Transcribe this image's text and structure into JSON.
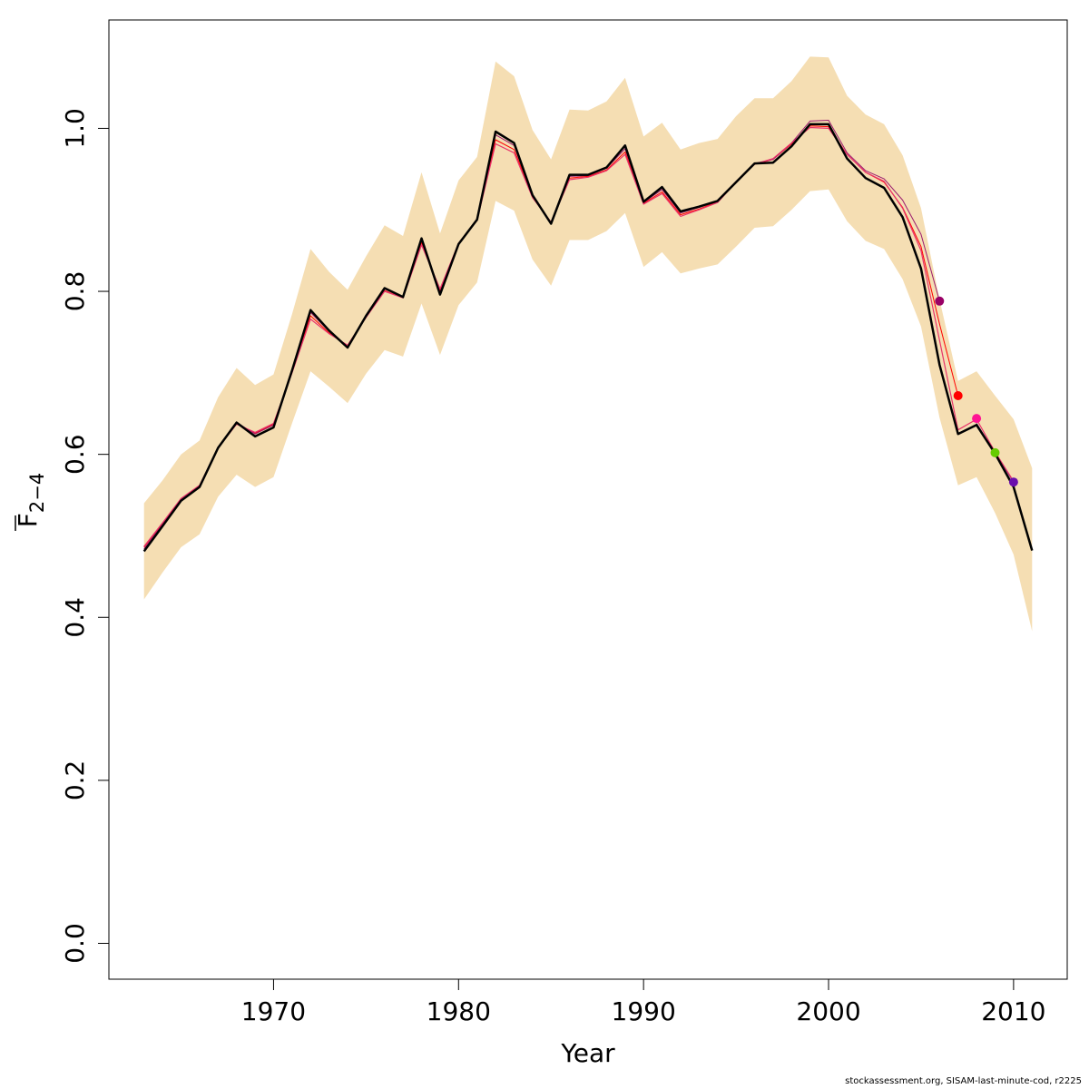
{
  "chart_data": {
    "type": "line",
    "xlabel": "Year",
    "ylabel": {
      "main": "F",
      "subscript": "2−4",
      "overline": true
    },
    "xlim": [
      1961.1,
      2012.9
    ],
    "ylim": [
      -0.044,
      1.133
    ],
    "x_ticks": [
      1970,
      1980,
      1990,
      2000,
      2010
    ],
    "y_ticks": [
      0.0,
      0.2,
      0.4,
      0.6,
      0.8,
      1.0
    ],
    "y_tick_labels": [
      "0.0",
      "0.2",
      "0.4",
      "0.6",
      "0.8",
      "1.0"
    ],
    "grid": false,
    "band_color": "#F5DEB3",
    "band": {
      "x": [
        1963,
        1964,
        1965,
        1966,
        1967,
        1968,
        1969,
        1970,
        1971,
        1972,
        1973,
        1974,
        1975,
        1976,
        1977,
        1978,
        1979,
        1980,
        1981,
        1982,
        1983,
        1984,
        1985,
        1986,
        1987,
        1988,
        1989,
        1990,
        1991,
        1992,
        1993,
        1994,
        1995,
        1996,
        1997,
        1998,
        1999,
        2000,
        2001,
        2002,
        2003,
        2004,
        2005,
        2006,
        2007,
        2008,
        2009,
        2010,
        2011
      ],
      "upper": [
        0.54,
        0.568,
        0.6,
        0.617,
        0.67,
        0.706,
        0.685,
        0.698,
        0.772,
        0.852,
        0.824,
        0.802,
        0.843,
        0.881,
        0.868,
        0.946,
        0.871,
        0.936,
        0.965,
        1.082,
        1.064,
        0.998,
        0.962,
        1.023,
        1.022,
        1.033,
        1.062,
        0.99,
        1.007,
        0.974,
        0.982,
        0.987,
        1.015,
        1.037,
        1.037,
        1.058,
        1.088,
        1.087,
        1.04,
        1.017,
        1.005,
        0.967,
        0.902,
        0.79,
        0.69,
        0.702,
        0.672,
        0.643,
        0.583
      ],
      "lower": [
        0.422,
        0.455,
        0.486,
        0.502,
        0.548,
        0.575,
        0.56,
        0.572,
        0.638,
        0.702,
        0.683,
        0.663,
        0.699,
        0.728,
        0.72,
        0.785,
        0.722,
        0.783,
        0.811,
        0.911,
        0.899,
        0.839,
        0.807,
        0.863,
        0.863,
        0.874,
        0.896,
        0.83,
        0.848,
        0.822,
        0.828,
        0.833,
        0.855,
        0.878,
        0.88,
        0.9,
        0.923,
        0.925,
        0.886,
        0.862,
        0.852,
        0.815,
        0.757,
        0.645,
        0.562,
        0.572,
        0.528,
        0.477,
        0.383
      ]
    },
    "series": [
      {
        "color": "#000000",
        "stroke_width": 2.5,
        "x": [
          1963,
          1964,
          1965,
          1966,
          1967,
          1968,
          1969,
          1970,
          1971,
          1972,
          1973,
          1974,
          1975,
          1976,
          1977,
          1978,
          1979,
          1980,
          1981,
          1982,
          1983,
          1984,
          1985,
          1986,
          1987,
          1988,
          1989,
          1990,
          1991,
          1992,
          1993,
          1994,
          1995,
          1996,
          1997,
          1998,
          1999,
          2000,
          2001,
          2002,
          2003,
          2004,
          2005,
          2006,
          2007,
          2008,
          2009,
          2010,
          2011
        ],
        "values": [
          0.481,
          0.512,
          0.543,
          0.56,
          0.608,
          0.639,
          0.622,
          0.633,
          0.703,
          0.777,
          0.752,
          0.731,
          0.77,
          0.804,
          0.793,
          0.865,
          0.796,
          0.858,
          0.888,
          0.996,
          0.982,
          0.918,
          0.883,
          0.943,
          0.943,
          0.952,
          0.979,
          0.91,
          0.928,
          0.898,
          0.904,
          0.911,
          0.934,
          0.957,
          0.958,
          0.978,
          1.005,
          1.005,
          0.963,
          0.939,
          0.927,
          0.891,
          0.828,
          0.71,
          0.625,
          0.636,
          0.601,
          0.56,
          0.482
        ]
      },
      {
        "color": "#E8336B",
        "stroke_width": 1.2,
        "x": [
          1963,
          1964,
          1965,
          1966,
          1967,
          1968,
          1969,
          1970,
          1971,
          1972,
          1973,
          1974,
          1975,
          1976,
          1977,
          1978,
          1979,
          1980,
          1981,
          1982,
          1983,
          1984,
          1985,
          1986,
          1987,
          1988,
          1989,
          1990,
          1991,
          1992,
          1993,
          1994,
          1995,
          1996,
          1997,
          1998,
          1999,
          2000,
          2001,
          2002,
          2003,
          2004,
          2005,
          2006,
          2007,
          2008,
          2009,
          2010
        ],
        "values": [
          0.487,
          0.516,
          0.546,
          0.562,
          0.608,
          0.637,
          0.627,
          0.638,
          0.7,
          0.766,
          0.748,
          0.734,
          0.768,
          0.8,
          0.792,
          0.857,
          0.803,
          0.859,
          0.887,
          0.981,
          0.97,
          0.915,
          0.885,
          0.937,
          0.94,
          0.948,
          0.968,
          0.907,
          0.92,
          0.892,
          0.9,
          0.909,
          0.934,
          0.956,
          0.963,
          0.982,
          1.001,
          1.0,
          0.968,
          0.946,
          0.935,
          0.902,
          0.85,
          0.74,
          0.63,
          0.643,
          0.603,
          0.567
        ]
      },
      {
        "color": "#FF0000",
        "stroke_width": 1.0,
        "x": [
          1963,
          1964,
          1965,
          1966,
          1967,
          1968,
          1969,
          1970,
          1971,
          1972,
          1973,
          1974,
          1975,
          1976,
          1977,
          1978,
          1979,
          1980,
          1981,
          1982,
          1983,
          1984,
          1985,
          1986,
          1987,
          1988,
          1989,
          1990,
          1991,
          1992,
          1993,
          1994,
          1995,
          1996,
          1997,
          1998,
          1999,
          2000,
          2001,
          2002,
          2003,
          2004,
          2005,
          2006,
          2007
        ],
        "values": [
          0.486,
          0.515,
          0.545,
          0.561,
          0.608,
          0.638,
          0.626,
          0.637,
          0.701,
          0.77,
          0.749,
          0.733,
          0.769,
          0.801,
          0.792,
          0.86,
          0.801,
          0.859,
          0.887,
          0.986,
          0.974,
          0.916,
          0.884,
          0.939,
          0.941,
          0.949,
          0.971,
          0.908,
          0.922,
          0.894,
          0.901,
          0.91,
          0.934,
          0.956,
          0.962,
          0.981,
          1.003,
          1.002,
          0.968,
          0.946,
          0.934,
          0.903,
          0.855,
          0.76,
          0.672
        ]
      },
      {
        "color": "#9B1B6E",
        "stroke_width": 1.0,
        "x": [
          1963,
          1964,
          1965,
          1966,
          1967,
          1968,
          1969,
          1970,
          1971,
          1972,
          1973,
          1974,
          1975,
          1976,
          1977,
          1978,
          1979,
          1980,
          1981,
          1982,
          1983,
          1984,
          1985,
          1986,
          1987,
          1988,
          1989,
          1990,
          1991,
          1992,
          1993,
          1994,
          1995,
          1996,
          1997,
          1998,
          1999,
          2000,
          2001,
          2002,
          2003,
          2004,
          2005,
          2006
        ],
        "values": [
          0.484,
          0.514,
          0.545,
          0.561,
          0.608,
          0.639,
          0.625,
          0.636,
          0.702,
          0.774,
          0.751,
          0.732,
          0.77,
          0.803,
          0.793,
          0.863,
          0.799,
          0.859,
          0.888,
          0.992,
          0.979,
          0.917,
          0.884,
          0.941,
          0.942,
          0.951,
          0.975,
          0.909,
          0.925,
          0.896,
          0.903,
          0.911,
          0.935,
          0.957,
          0.962,
          0.982,
          1.009,
          1.01,
          0.97,
          0.948,
          0.938,
          0.912,
          0.87,
          0.788
        ]
      },
      {
        "color": "#5A1E8C",
        "stroke_width": 1.0,
        "x": [
          2008,
          2009,
          2010
        ],
        "values": [
          0.638,
          0.602,
          0.566
        ]
      }
    ],
    "endpoints": [
      {
        "x": 2006,
        "y": 0.788,
        "color": "#990066"
      },
      {
        "x": 2007,
        "y": 0.672,
        "color": "#FF0000"
      },
      {
        "x": 2008,
        "y": 0.644,
        "color": "#FF1493"
      },
      {
        "x": 2009,
        "y": 0.602,
        "color": "#66CC00"
      },
      {
        "x": 2010,
        "y": 0.566,
        "color": "#6A0DAD"
      }
    ]
  },
  "footer": {
    "credit": "stockassessment.org, SISAM-last-minute-cod, r2225"
  }
}
